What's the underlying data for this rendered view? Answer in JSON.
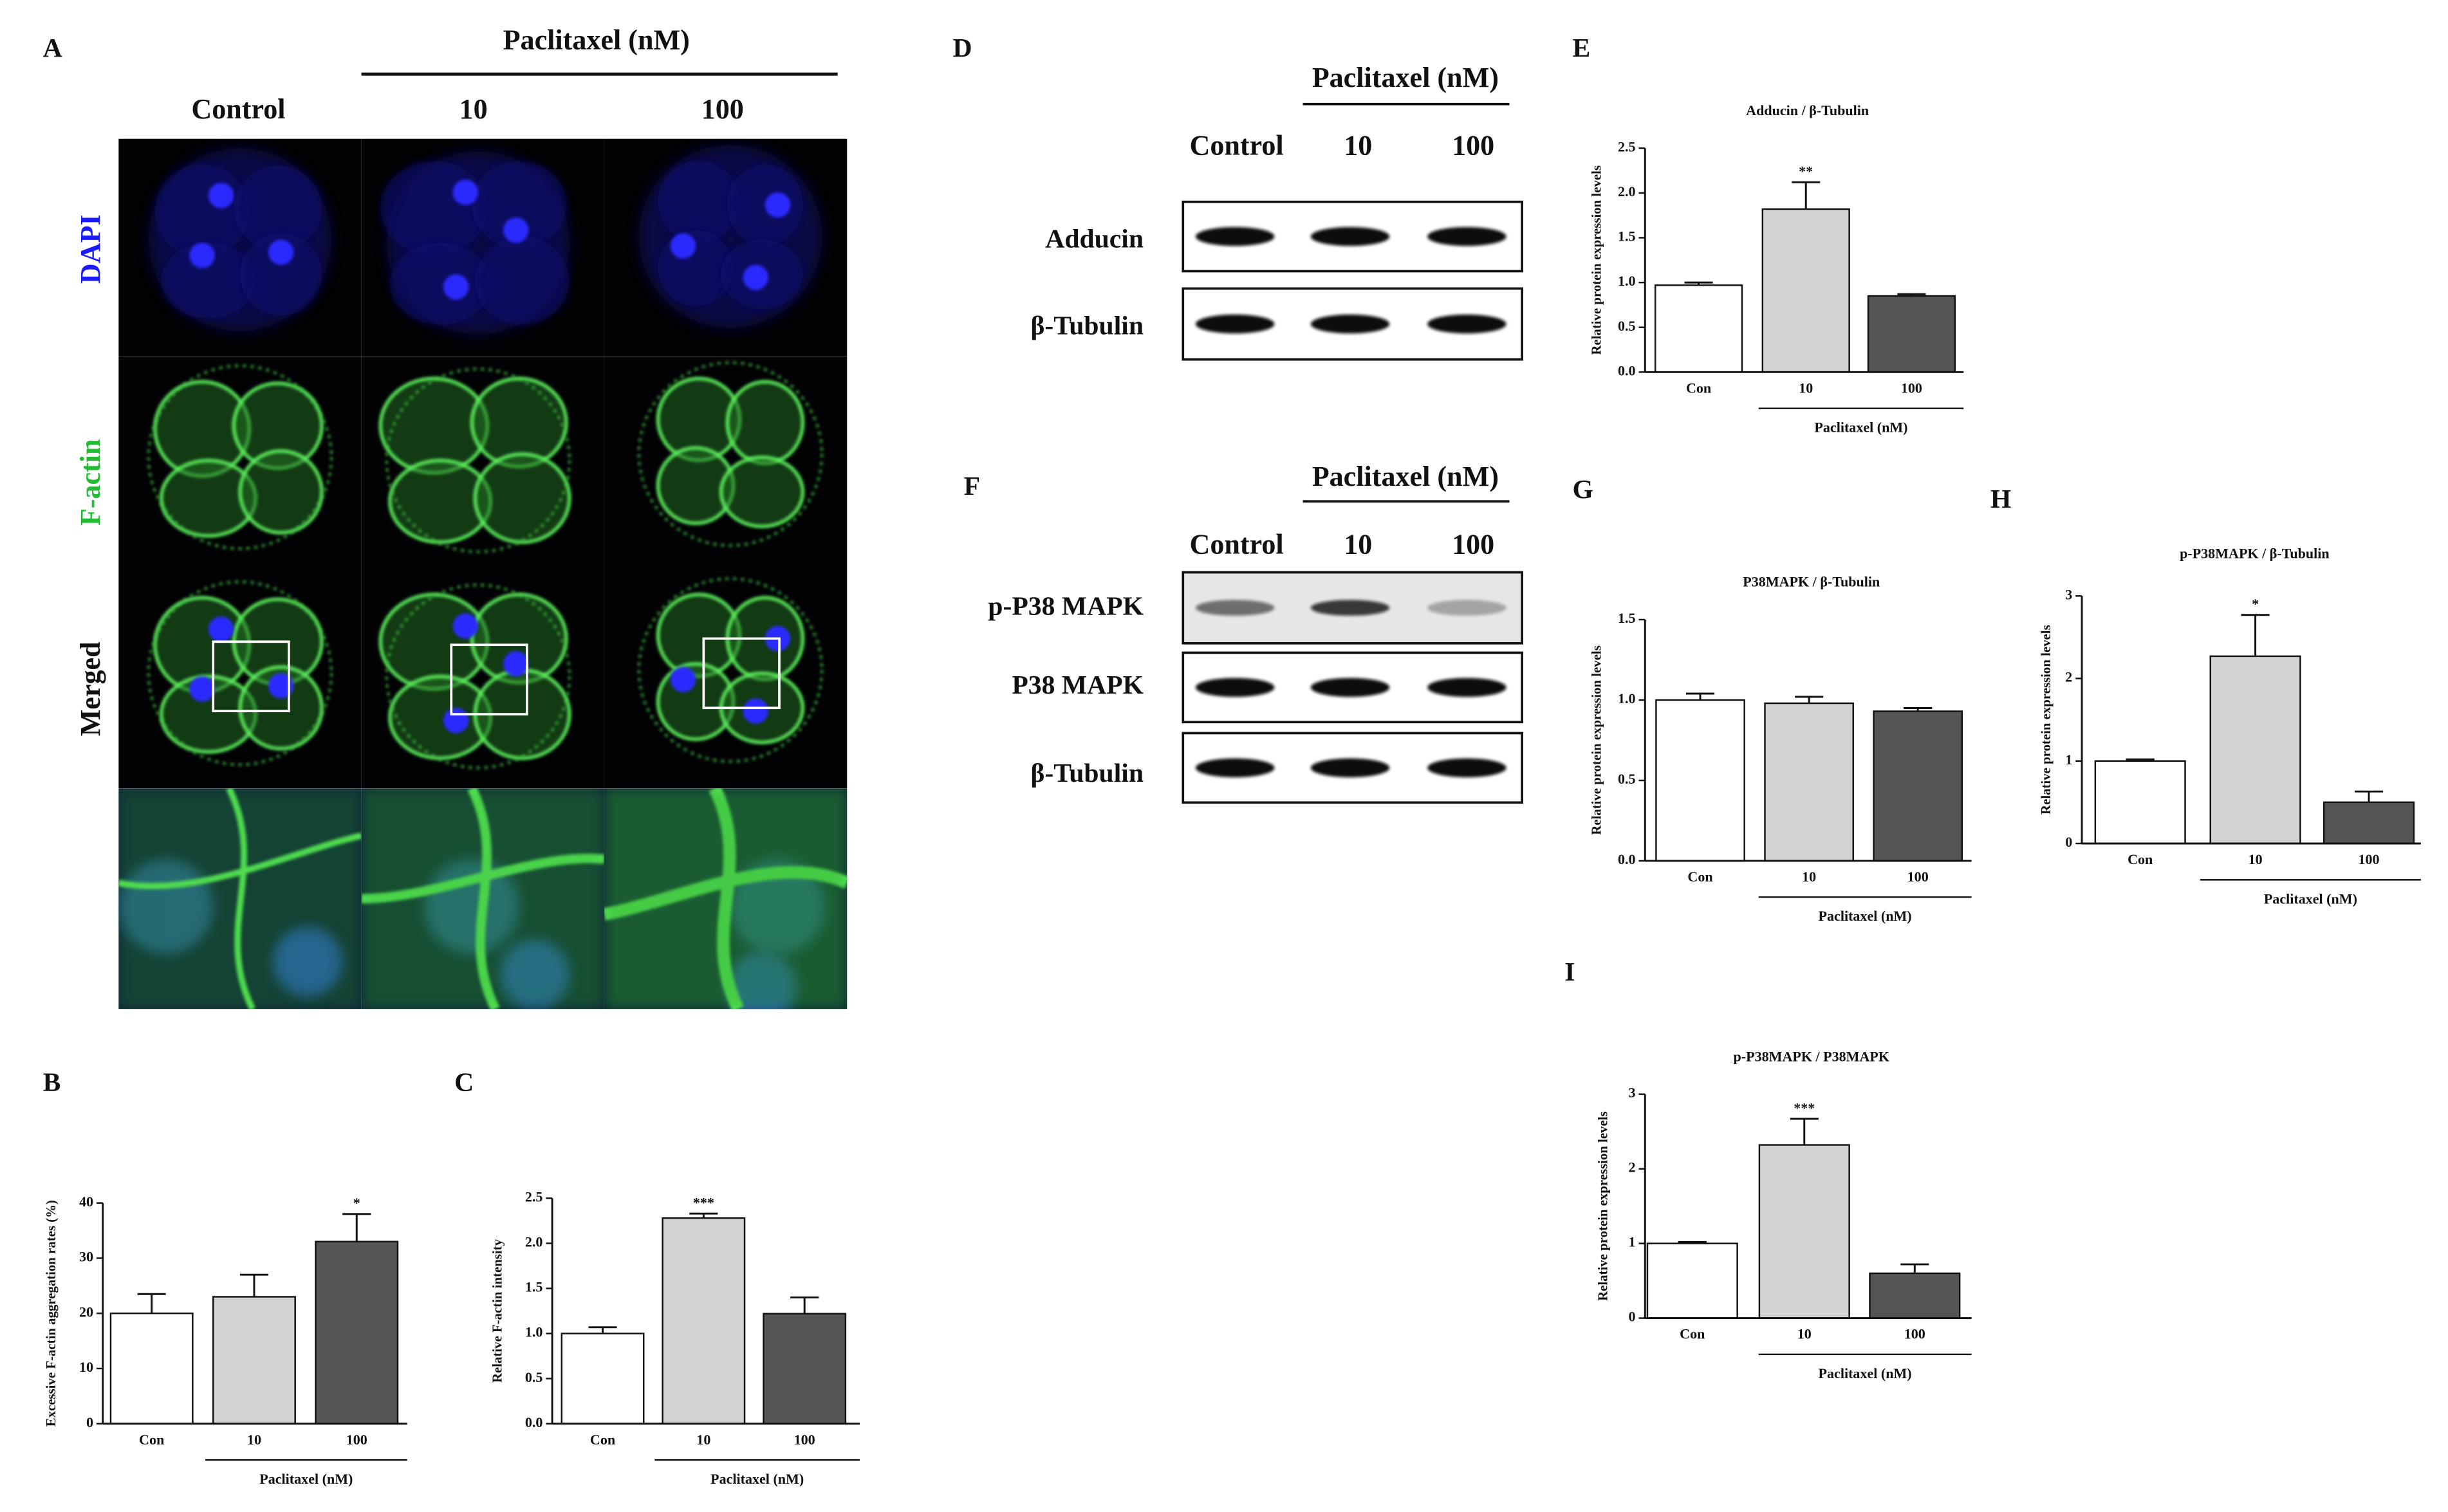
{
  "panel_a": {
    "letter": "A",
    "treatment_label": "Paclitaxel (nM)",
    "columns": [
      "Control",
      "10",
      "100"
    ],
    "rows": [
      "DAPI",
      "F-actin",
      "Merged"
    ]
  },
  "panel_d": {
    "letter": "D",
    "treatment_label": "Paclitaxel (nM)",
    "columns": [
      "Control",
      "10",
      "100"
    ],
    "rows": [
      "Adducin",
      "β-Tubulin"
    ]
  },
  "panel_f": {
    "letter": "F",
    "treatment_label": "Paclitaxel (nM)",
    "columns": [
      "Control",
      "10",
      "100"
    ],
    "rows": [
      "p-P38 MAPK",
      "P38 MAPK",
      "β-Tubulin"
    ]
  },
  "chart_data": [
    {
      "type": "bar",
      "panel": "B",
      "y_label": "Excessive F-actin aggregation rates (%)",
      "x_label": "Paclitaxel (nM)",
      "categories": [
        "Con",
        "10",
        "100"
      ],
      "values": [
        20,
        23,
        33
      ],
      "errors": [
        3.5,
        4,
        5
      ],
      "significance": [
        null,
        null,
        "*"
      ],
      "colors": [
        "#ffffff",
        "#d3d3d3",
        "#555555"
      ],
      "ylim": [
        0,
        40
      ],
      "yticks": [
        0,
        10,
        20,
        30,
        40
      ]
    },
    {
      "type": "bar",
      "panel": "C",
      "y_label": "Relative F-actin intensity",
      "x_label": "Paclitaxel (nM)",
      "categories": [
        "Con",
        "10",
        "100"
      ],
      "values": [
        1.0,
        2.28,
        1.22
      ],
      "errors": [
        0.07,
        0.05,
        0.18
      ],
      "significance": [
        null,
        "***",
        null
      ],
      "colors": [
        "#ffffff",
        "#d3d3d3",
        "#555555"
      ],
      "ylim": [
        0,
        2.5
      ],
      "yticks": [
        {
          "value": 0,
          "label": "0.0"
        },
        0.5,
        {
          "value": 1,
          "label": "1.0"
        },
        1.5,
        {
          "value": 2,
          "label": "2.0"
        },
        2.5
      ]
    },
    {
      "type": "bar",
      "panel": "E",
      "title": "Adducin / β-Tubulin",
      "y_label": "Relative protein expression levels",
      "x_label": "Paclitaxel (nM)",
      "categories": [
        "Con",
        "10",
        "100"
      ],
      "values": [
        0.97,
        1.82,
        0.85
      ],
      "errors": [
        0.03,
        0.3,
        0.02
      ],
      "significance": [
        null,
        "**",
        null
      ],
      "colors": [
        "#ffffff",
        "#d3d3d3",
        "#555555"
      ],
      "ylim": [
        0,
        2.5
      ],
      "yticks": [
        {
          "value": 0,
          "label": "0.0"
        },
        0.5,
        {
          "value": 1,
          "label": "1.0"
        },
        1.5,
        {
          "value": 2,
          "label": "2.0"
        },
        2.5
      ]
    },
    {
      "type": "bar",
      "panel": "G",
      "title": "P38MAPK / β-Tubulin",
      "y_label": "Relative protein expression levels",
      "x_label": "Paclitaxel (nM)",
      "categories": [
        "Con",
        "10",
        "100"
      ],
      "values": [
        1.0,
        0.98,
        0.93
      ],
      "errors": [
        0.04,
        0.04,
        0.02
      ],
      "colors": [
        "#ffffff",
        "#d3d3d3",
        "#555555"
      ],
      "ylim": [
        0,
        1.5
      ],
      "yticks": [
        {
          "value": 0,
          "label": "0.0"
        },
        0.5,
        {
          "value": 1,
          "label": "1.0"
        },
        1.5
      ]
    },
    {
      "type": "bar",
      "panel": "H",
      "title": "p-P38MAPK / β-Tubulin",
      "y_label": "Relative protein expression levels",
      "x_label": "Paclitaxel (nM)",
      "categories": [
        "Con",
        "10",
        "100"
      ],
      "values": [
        1.0,
        2.27,
        0.5
      ],
      "errors": [
        0.02,
        0.5,
        0.13
      ],
      "significance": [
        null,
        "*",
        null
      ],
      "colors": [
        "#ffffff",
        "#d3d3d3",
        "#555555"
      ],
      "ylim": [
        0,
        3
      ],
      "yticks": [
        0,
        1,
        2,
        3
      ]
    },
    {
      "type": "bar",
      "panel": "I",
      "title": "p-P38MAPK / P38MAPK",
      "y_label": "Relative protein expression levels",
      "x_label": "Paclitaxel (nM)",
      "categories": [
        "Con",
        "10",
        "100"
      ],
      "values": [
        1.0,
        2.32,
        0.6
      ],
      "errors": [
        0.02,
        0.35,
        0.12
      ],
      "significance": [
        null,
        "***",
        null
      ],
      "colors": [
        "#ffffff",
        "#d3d3d3",
        "#555555"
      ],
      "ylim": [
        0,
        3
      ],
      "yticks": [
        0,
        1,
        2,
        3
      ]
    }
  ]
}
